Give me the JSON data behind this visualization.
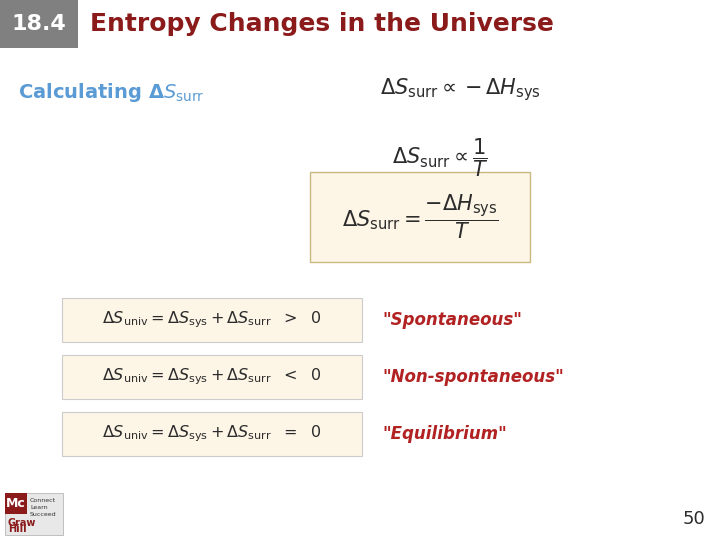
{
  "background_color": "#ffffff",
  "header_box_color": "#808080",
  "header_number": "18.4",
  "header_number_color": "#ffffff",
  "header_title": "Entropy Changes in the Universe",
  "header_title_color": "#8b1a1a",
  "calculating_color": "#5b9bd5",
  "formula_box_color": "#fdf5e6",
  "row_box_color": "#fdf5e6",
  "red_text_color": "#b22222",
  "dark_text_color": "#2c2c2c",
  "page_number": "50",
  "logo_red": "#8b1a1a",
  "logo_dark": "#333333"
}
